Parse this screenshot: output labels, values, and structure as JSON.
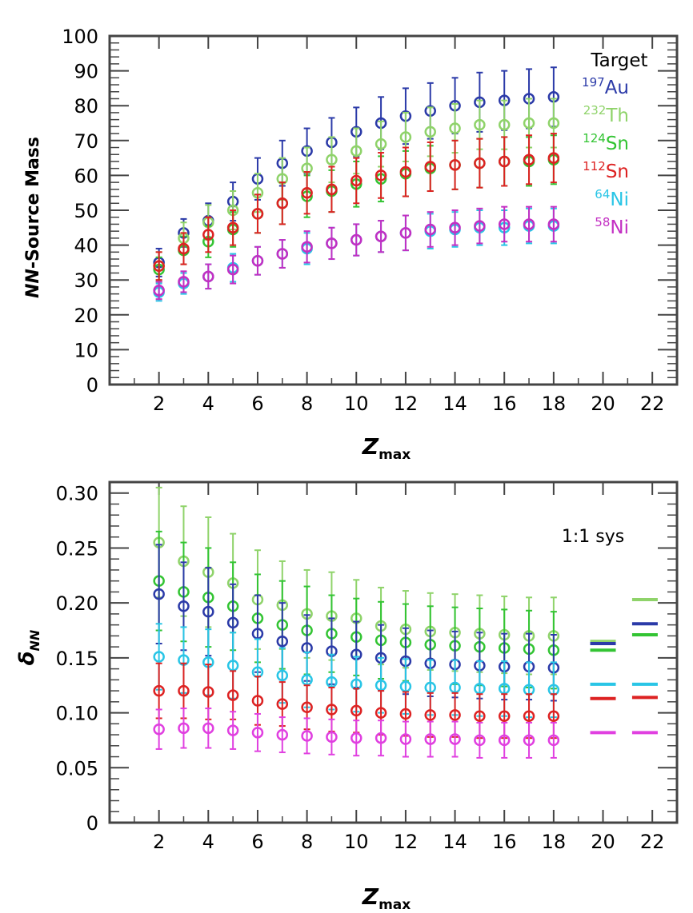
{
  "chart_data": [
    {
      "type": "scatter",
      "xlabel_main": "Z",
      "xlabel_sub": "max",
      "ylabel": "NN-Source Mass",
      "ylabel_italic_prefix": "NN",
      "ylabel_rest": "-Source Mass",
      "xlim": [
        0,
        23
      ],
      "ylim": [
        0,
        100
      ],
      "x_ticks": [
        2,
        4,
        6,
        8,
        10,
        12,
        14,
        16,
        18,
        20,
        22
      ],
      "y_ticks": [
        0,
        10,
        20,
        30,
        40,
        50,
        60,
        70,
        80,
        90,
        100
      ],
      "legend_title": "Target",
      "legend_position": "top-right",
      "series": [
        {
          "name": "197Au",
          "mass": "197",
          "element": "Au",
          "color": "#2b3aa8",
          "marker": "circle",
          "x": [
            2,
            3,
            4,
            5,
            6,
            7,
            8,
            9,
            10,
            11,
            12,
            13,
            14,
            15,
            16,
            17,
            18
          ],
          "y": [
            35,
            43.5,
            47,
            52.5,
            59,
            63.5,
            67,
            69.5,
            72.5,
            75,
            77,
            78.5,
            80,
            81,
            81.5,
            82,
            82.5
          ],
          "err": [
            4,
            4,
            5,
            5.5,
            6,
            6.5,
            6.5,
            7,
            7,
            7.5,
            8,
            8,
            8,
            8.5,
            8.5,
            8.5,
            8.5
          ]
        },
        {
          "name": "232Th",
          "mass": "232",
          "element": "Th",
          "color": "#8fd36a",
          "marker": "circle",
          "x": [
            2,
            3,
            4,
            5,
            6,
            7,
            8,
            9,
            10,
            11,
            12,
            13,
            14,
            15,
            16,
            17,
            18
          ],
          "y": [
            34,
            42,
            46.5,
            50,
            55,
            59,
            62,
            64.5,
            67,
            69,
            71,
            72.5,
            73.5,
            74.5,
            74.5,
            75,
            75
          ],
          "err": [
            4,
            4.5,
            5,
            5.5,
            5.5,
            6,
            6,
            6.5,
            6.5,
            6.5,
            7,
            7,
            7,
            7,
            7,
            7,
            7
          ]
        },
        {
          "name": "124Sn",
          "mass": "124",
          "element": "Sn",
          "color": "#33c433",
          "marker": "circle",
          "x": [
            2,
            3,
            4,
            5,
            6,
            7,
            8,
            9,
            10,
            11,
            12,
            13,
            14,
            15,
            16,
            17,
            18
          ],
          "y": [
            33,
            38.5,
            41,
            44.5,
            49,
            52,
            54,
            55.5,
            57.5,
            59,
            60.5,
            62,
            63,
            63.5,
            64,
            64,
            64.5
          ],
          "err": [
            3.5,
            4,
            4.5,
            5,
            5.5,
            6,
            6,
            6,
            6.5,
            6.5,
            6.5,
            6.5,
            7,
            7,
            7,
            7,
            7
          ]
        },
        {
          "name": "112Sn",
          "mass": "112",
          "element": "Sn",
          "color": "#dd2222",
          "marker": "circle",
          "x": [
            2,
            3,
            4,
            5,
            6,
            7,
            8,
            9,
            10,
            11,
            12,
            13,
            14,
            15,
            16,
            17,
            18
          ],
          "y": [
            34,
            39,
            43,
            45,
            49,
            52,
            55,
            56,
            58.5,
            60,
            61,
            62.5,
            63,
            63.5,
            64,
            64.5,
            65
          ],
          "err": [
            4,
            4.5,
            5,
            5,
            5.5,
            6,
            6,
            6.5,
            6.5,
            6.5,
            7,
            7,
            7,
            7,
            7,
            7,
            7
          ]
        },
        {
          "name": "64Ni",
          "mass": "64",
          "element": "Ni",
          "color": "#29c5e6",
          "marker": "circle",
          "x": [
            2,
            3,
            4,
            5,
            6,
            7,
            8,
            9,
            10,
            11,
            12,
            13,
            14,
            15,
            16,
            17,
            18
          ],
          "y": [
            26.5,
            29,
            31,
            33.5,
            35.5,
            37.5,
            39,
            40.5,
            41.5,
            42.5,
            43.5,
            44,
            44.5,
            45,
            45,
            45.5,
            45.5
          ],
          "err": [
            2.5,
            3,
            3.5,
            4,
            4,
            4,
            4.5,
            4.5,
            4.5,
            4.5,
            5,
            5,
            5,
            5,
            5,
            5,
            5
          ]
        },
        {
          "name": "58Ni",
          "mass": "58",
          "element": "Ni",
          "color": "#c32fc3",
          "marker": "circle",
          "x": [
            2,
            3,
            4,
            5,
            6,
            7,
            8,
            9,
            10,
            11,
            12,
            13,
            14,
            15,
            16,
            17,
            18
          ],
          "y": [
            27,
            29.5,
            31,
            33,
            35.5,
            37.5,
            39.5,
            40.5,
            41.5,
            42.5,
            43.5,
            44.5,
            45,
            45.5,
            46,
            46,
            46
          ],
          "err": [
            2.5,
            3,
            3.5,
            4,
            4,
            4,
            4.5,
            4.5,
            4.5,
            4.5,
            5,
            5,
            5,
            5,
            5,
            5,
            5
          ]
        }
      ]
    },
    {
      "type": "scatter",
      "xlabel_main": "Z",
      "xlabel_sub": "max",
      "ylabel_main": "δ",
      "ylabel_sub": "NN",
      "xlim": [
        0,
        23
      ],
      "ylim": [
        0,
        0.31
      ],
      "x_ticks": [
        2,
        4,
        6,
        8,
        10,
        12,
        14,
        16,
        18,
        20,
        22
      ],
      "y_ticks": [
        0,
        0.05,
        0.1,
        0.15,
        0.2,
        0.25,
        0.3
      ],
      "y_tick_labels": [
        "0",
        "0.05",
        "0.10",
        "0.15",
        "0.20",
        "0.25",
        "0.30"
      ],
      "annotation": "1:1 sys",
      "series": [
        {
          "name": "232Th",
          "color": "#8fd36a",
          "marker": "circle",
          "x": [
            2,
            3,
            4,
            5,
            6,
            7,
            8,
            9,
            10,
            11,
            12,
            13,
            14,
            15,
            16,
            17,
            18
          ],
          "y": [
            0.255,
            0.238,
            0.228,
            0.218,
            0.203,
            0.198,
            0.19,
            0.188,
            0.186,
            0.179,
            0.176,
            0.174,
            0.173,
            0.172,
            0.171,
            0.17,
            0.17
          ],
          "err": [
            0.05,
            0.05,
            0.05,
            0.045,
            0.045,
            0.04,
            0.04,
            0.04,
            0.035,
            0.035,
            0.035,
            0.035,
            0.035,
            0.035,
            0.035,
            0.035,
            0.035
          ],
          "sys": [
            {
              "x": 20.0,
              "y": 0.165
            },
            {
              "x": 21.7,
              "y": 0.203
            }
          ]
        },
        {
          "name": "124Sn",
          "color": "#33c433",
          "marker": "circle",
          "x": [
            2,
            3,
            4,
            5,
            6,
            7,
            8,
            9,
            10,
            11,
            12,
            13,
            14,
            15,
            16,
            17,
            18
          ],
          "y": [
            0.22,
            0.21,
            0.205,
            0.197,
            0.186,
            0.18,
            0.175,
            0.172,
            0.169,
            0.166,
            0.164,
            0.162,
            0.161,
            0.16,
            0.159,
            0.158,
            0.157
          ],
          "err": [
            0.045,
            0.045,
            0.045,
            0.04,
            0.04,
            0.04,
            0.04,
            0.035,
            0.035,
            0.035,
            0.035,
            0.035,
            0.035,
            0.035,
            0.035,
            0.035,
            0.035
          ],
          "sys": [
            {
              "x": 20.0,
              "y": 0.157
            },
            {
              "x": 21.7,
              "y": 0.171
            }
          ]
        },
        {
          "name": "197Au",
          "color": "#2b3aa8",
          "marker": "circle",
          "x": [
            2,
            3,
            4,
            5,
            6,
            7,
            8,
            9,
            10,
            11,
            12,
            13,
            14,
            15,
            16,
            17,
            18
          ],
          "y": [
            0.208,
            0.197,
            0.192,
            0.182,
            0.172,
            0.165,
            0.159,
            0.156,
            0.153,
            0.15,
            0.147,
            0.145,
            0.144,
            0.143,
            0.142,
            0.142,
            0.141
          ],
          "err": [
            0.045,
            0.04,
            0.04,
            0.035,
            0.035,
            0.035,
            0.03,
            0.03,
            0.03,
            0.03,
            0.03,
            0.03,
            0.03,
            0.03,
            0.03,
            0.03,
            0.03
          ],
          "sys": [
            {
              "x": 20.0,
              "y": 0.163
            },
            {
              "x": 21.7,
              "y": 0.181
            }
          ]
        },
        {
          "name": "64Ni",
          "color": "#29c5e6",
          "marker": "circle",
          "x": [
            2,
            3,
            4,
            5,
            6,
            7,
            8,
            9,
            10,
            11,
            12,
            13,
            14,
            15,
            16,
            17,
            18
          ],
          "y": [
            0.151,
            0.148,
            0.146,
            0.143,
            0.137,
            0.134,
            0.13,
            0.128,
            0.126,
            0.125,
            0.124,
            0.123,
            0.123,
            0.122,
            0.122,
            0.121,
            0.121
          ],
          "err": [
            0.03,
            0.03,
            0.03,
            0.03,
            0.03,
            0.025,
            0.025,
            0.025,
            0.025,
            0.025,
            0.025,
            0.025,
            0.025,
            0.025,
            0.025,
            0.025,
            0.025
          ],
          "sys": [
            {
              "x": 20.0,
              "y": 0.126
            },
            {
              "x": 21.7,
              "y": 0.126
            }
          ]
        },
        {
          "name": "112Sn",
          "color": "#dd2222",
          "marker": "circle",
          "x": [
            2,
            3,
            4,
            5,
            6,
            7,
            8,
            9,
            10,
            11,
            12,
            13,
            14,
            15,
            16,
            17,
            18
          ],
          "y": [
            0.12,
            0.12,
            0.119,
            0.116,
            0.111,
            0.108,
            0.105,
            0.103,
            0.102,
            0.1,
            0.099,
            0.098,
            0.098,
            0.097,
            0.097,
            0.097,
            0.097
          ],
          "err": [
            0.025,
            0.025,
            0.025,
            0.022,
            0.022,
            0.02,
            0.02,
            0.02,
            0.02,
            0.02,
            0.02,
            0.02,
            0.02,
            0.02,
            0.02,
            0.02,
            0.02
          ],
          "sys": [
            {
              "x": 20.0,
              "y": 0.113
            },
            {
              "x": 21.7,
              "y": 0.114
            }
          ]
        },
        {
          "name": "58Ni",
          "color": "#e040e0",
          "marker": "circle",
          "x": [
            2,
            3,
            4,
            5,
            6,
            7,
            8,
            9,
            10,
            11,
            12,
            13,
            14,
            15,
            16,
            17,
            18
          ],
          "y": [
            0.085,
            0.086,
            0.086,
            0.084,
            0.082,
            0.08,
            0.079,
            0.078,
            0.077,
            0.077,
            0.076,
            0.076,
            0.076,
            0.075,
            0.075,
            0.075,
            0.075
          ],
          "err": [
            0.018,
            0.018,
            0.018,
            0.017,
            0.017,
            0.016,
            0.016,
            0.016,
            0.016,
            0.016,
            0.016,
            0.016,
            0.016,
            0.016,
            0.016,
            0.016,
            0.016
          ],
          "sys": [
            {
              "x": 20.0,
              "y": 0.082
            },
            {
              "x": 21.7,
              "y": 0.082
            }
          ]
        }
      ]
    }
  ]
}
